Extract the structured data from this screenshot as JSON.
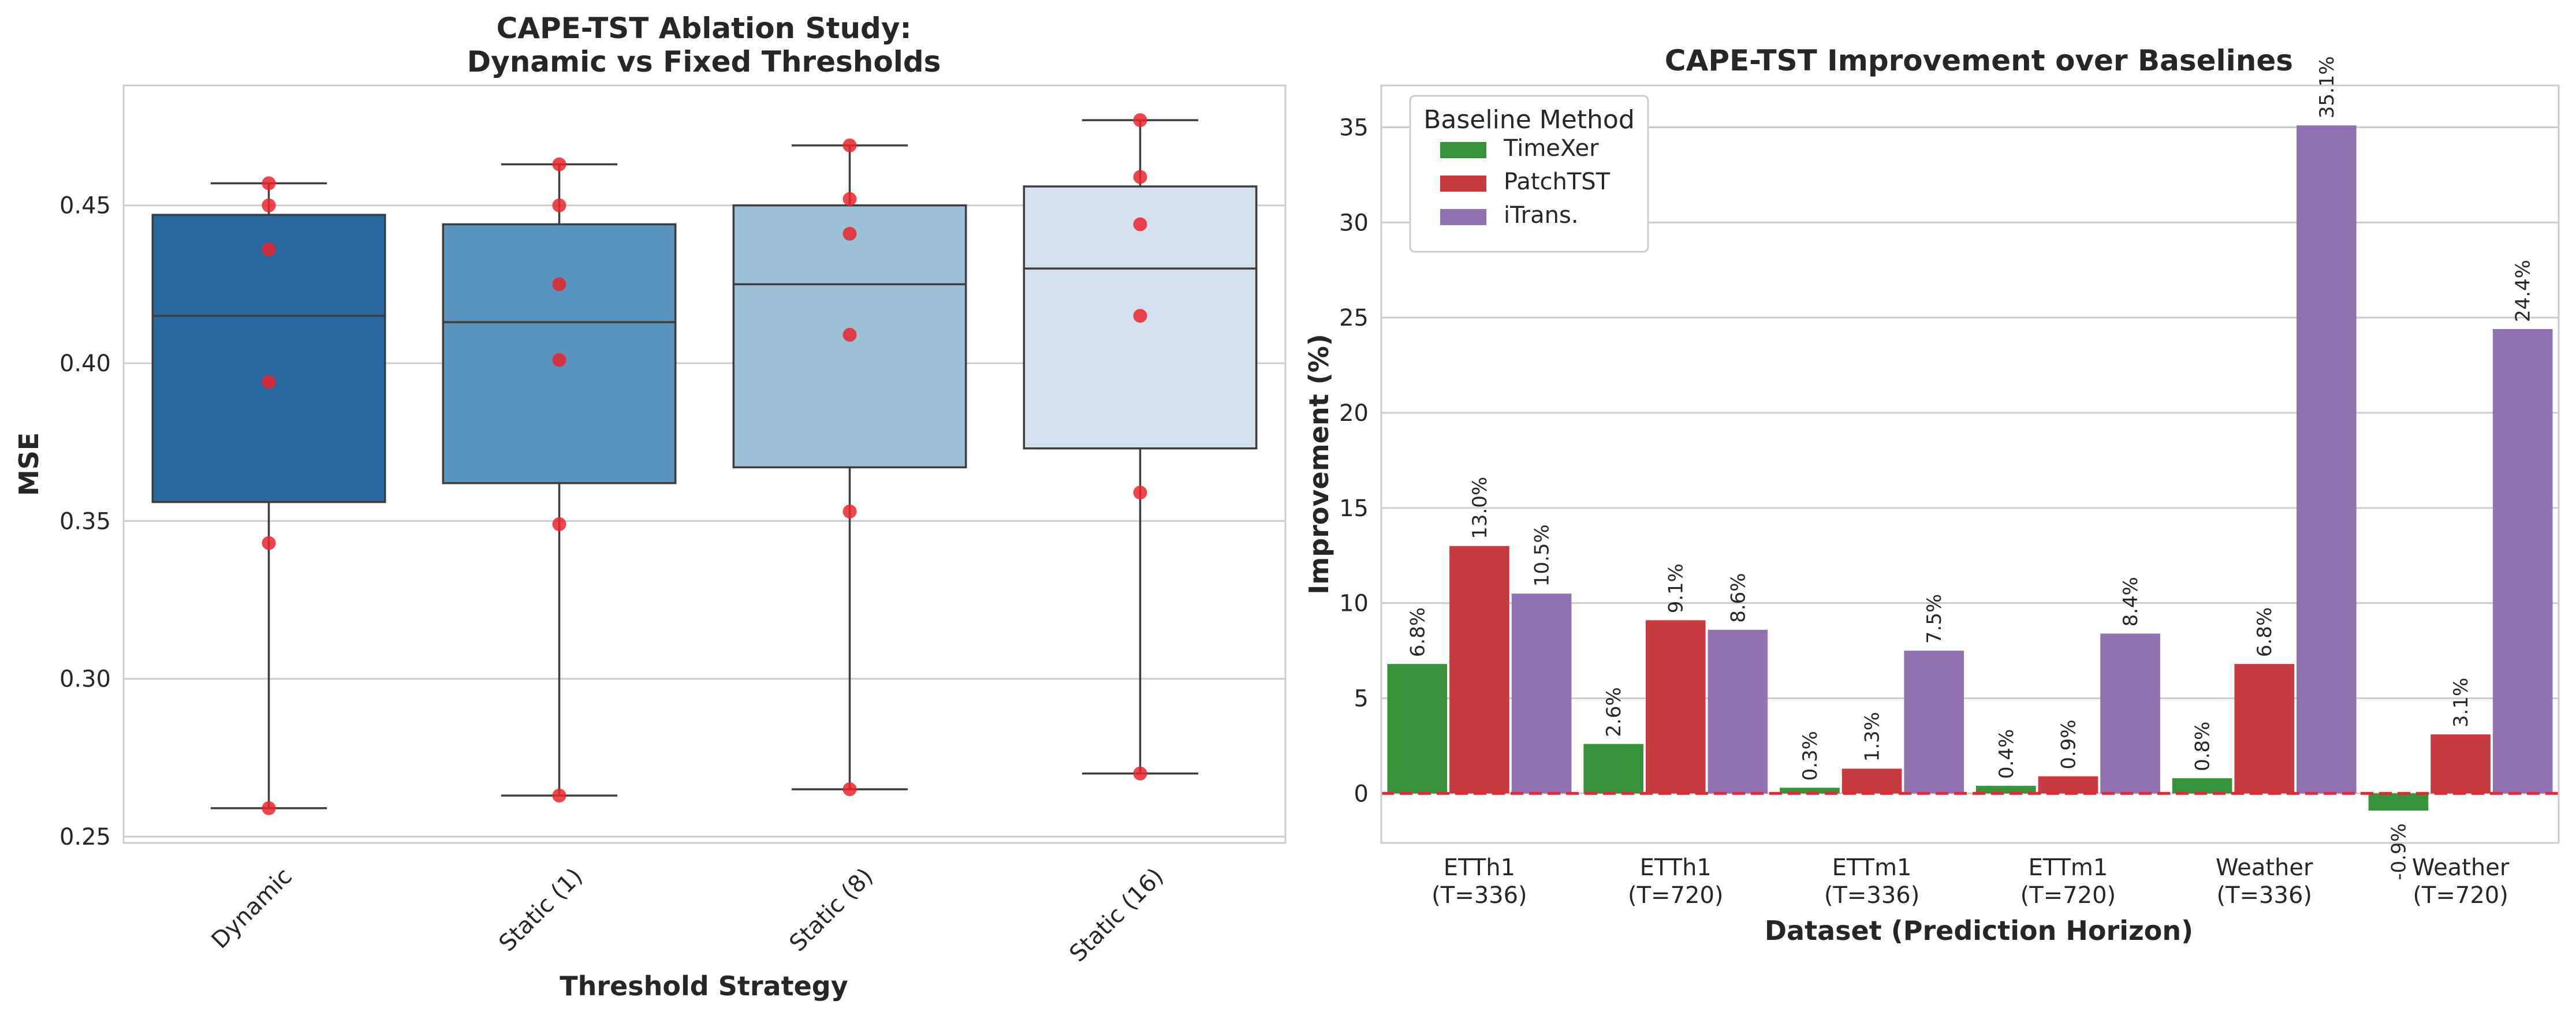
{
  "chart_data": [
    {
      "type": "box",
      "title": "CAPE-TST Ablation Study:\nDynamic vs Fixed Thresholds",
      "title_lines": [
        "CAPE-TST Ablation Study:",
        "Dynamic vs Fixed Thresholds"
      ],
      "xlabel": "Threshold Strategy",
      "ylabel": "MSE",
      "ylim": [
        0.248,
        0.488
      ],
      "yticks": [
        0.25,
        0.3,
        0.35,
        0.4,
        0.45
      ],
      "ytick_labels": [
        "0.25",
        "0.30",
        "0.35",
        "0.40",
        "0.45"
      ],
      "grid": true,
      "categories": [
        "Dynamic",
        "Static (1)",
        "Static (8)",
        "Static (16)"
      ],
      "boxes": [
        {
          "whisker_low": 0.259,
          "q1": 0.356,
          "median": 0.415,
          "q3": 0.447,
          "whisker_high": 0.457
        },
        {
          "whisker_low": 0.263,
          "q1": 0.362,
          "median": 0.413,
          "q3": 0.444,
          "whisker_high": 0.463
        },
        {
          "whisker_low": 0.265,
          "q1": 0.367,
          "median": 0.425,
          "q3": 0.45,
          "whisker_high": 0.469
        },
        {
          "whisker_low": 0.27,
          "q1": 0.373,
          "median": 0.43,
          "q3": 0.456,
          "whisker_high": 0.477
        }
      ],
      "points": [
        [
          0.259,
          0.343,
          0.394,
          0.436,
          0.45,
          0.457
        ],
        [
          0.263,
          0.349,
          0.401,
          0.425,
          0.45,
          0.463
        ],
        [
          0.265,
          0.353,
          0.409,
          0.441,
          0.452,
          0.469
        ],
        [
          0.27,
          0.359,
          0.415,
          0.444,
          0.459,
          0.477
        ]
      ],
      "box_colors": [
        "#2967a0",
        "#5a93bd",
        "#9dc1d7",
        "#d3e1ee"
      ],
      "point_color": "#e8262b"
    },
    {
      "type": "bar",
      "title": "CAPE-TST Improvement over Baselines",
      "xlabel": "Dataset (Prediction Horizon)",
      "ylabel": "Improvement (%)",
      "ylim": [
        -2.6,
        37.2
      ],
      "yticks": [
        0,
        5,
        10,
        15,
        20,
        25,
        30,
        35
      ],
      "grid": true,
      "categories": [
        [
          "ETTh1",
          "(T=336)"
        ],
        [
          "ETTh1",
          "(T=720)"
        ],
        [
          "ETTm1",
          "(T=336)"
        ],
        [
          "ETTm1",
          "(T=720)"
        ],
        [
          "Weather",
          "(T=336)"
        ],
        [
          "Weather",
          "(T=720)"
        ]
      ],
      "series": [
        {
          "name": "TimeXer",
          "color": "#38923a",
          "values": [
            6.8,
            2.6,
            0.3,
            0.4,
            0.8,
            -0.9
          ],
          "labels": [
            "6.8%",
            "2.6%",
            "0.3%",
            "0.4%",
            "0.8%",
            "-0.9%"
          ]
        },
        {
          "name": "PatchTST",
          "color": "#c53b3e",
          "values": [
            13.0,
            9.1,
            1.3,
            0.9,
            6.8,
            3.1
          ],
          "labels": [
            "13.0%",
            "9.1%",
            "1.3%",
            "0.9%",
            "6.8%",
            "3.1%"
          ]
        },
        {
          "name": "iTrans.",
          "color": "#9072b3",
          "values": [
            10.5,
            8.6,
            7.5,
            8.4,
            35.1,
            24.4
          ],
          "labels": [
            "10.5%",
            "8.6%",
            "7.5%",
            "8.4%",
            "35.1%",
            "24.4%"
          ]
        }
      ],
      "legend": {
        "title": "Baseline Method",
        "position": "top-left"
      },
      "reference_line": {
        "y": 0,
        "color": "#e8262b",
        "style": "dashed"
      }
    }
  ]
}
